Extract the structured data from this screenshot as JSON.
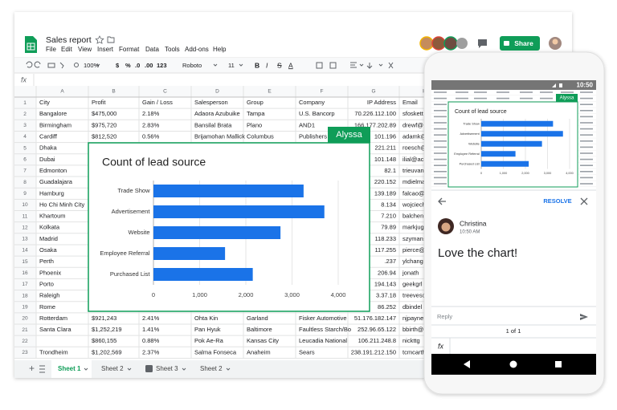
{
  "header": {
    "title": "Sales report",
    "menu": [
      "File",
      "Edit",
      "View",
      "Insert",
      "Format",
      "Data",
      "Tools",
      "Add-ons",
      "Help"
    ],
    "share": "Share"
  },
  "toolbar": {
    "zoom": "100%",
    "number_formats": [
      "$",
      "%",
      ".0",
      ".00",
      "123"
    ],
    "font": "Roboto",
    "size": "11",
    "styles": [
      "B",
      "I",
      "S",
      "A"
    ]
  },
  "formula_bar": {
    "label": "fx"
  },
  "sheet": {
    "columns": [
      "A",
      "B",
      "C",
      "D",
      "E",
      "F",
      "G",
      "H"
    ],
    "row_numbers": [
      1,
      2,
      3,
      4,
      5,
      6,
      7,
      8,
      9,
      10,
      11,
      12,
      13,
      14,
      15,
      16,
      17,
      18,
      19,
      20,
      21,
      22,
      23
    ],
    "rows": [
      [
        "City",
        "Profit",
        "Gain / Loss",
        "Salesperson",
        "Group",
        "Company",
        "IP Address",
        "Email"
      ],
      [
        "Bangalore",
        "$475,000",
        "2.18%",
        "Adaora Azubuike",
        "Tampa",
        "U.S. Bancorp",
        "70.226.112.100",
        "sfoskett"
      ],
      [
        "Birmingham",
        "$975,720",
        "2.83%",
        "Bansilal Brata",
        "Plano",
        "AND1",
        "166.177.202.89",
        "drewf@"
      ],
      [
        "Cardiff",
        "$812,520",
        "0.56%",
        "Brijamohan Mallick",
        "Columbus",
        "Publishers",
        "101.196",
        "adamk@"
      ],
      [
        "Dhaka",
        null,
        null,
        null,
        null,
        null,
        "221.211",
        "roesch@"
      ],
      [
        "Dubai",
        null,
        null,
        null,
        null,
        null,
        "101.148",
        "ilial@ac"
      ],
      [
        "Edmonton",
        null,
        null,
        null,
        null,
        null,
        "82.1",
        "trieuvan"
      ],
      [
        "Guadalajara",
        null,
        null,
        null,
        null,
        null,
        "220.152",
        "mdielma"
      ],
      [
        "Hamburg",
        null,
        null,
        null,
        null,
        null,
        "139.189",
        "falcao@"
      ],
      [
        "Ho Chi Minh City",
        null,
        null,
        null,
        null,
        null,
        "8.134",
        "wojciech"
      ],
      [
        "Khartoum",
        null,
        null,
        null,
        null,
        null,
        "7.210",
        "balchen"
      ],
      [
        "Kolkata",
        null,
        null,
        null,
        null,
        null,
        "79.89",
        "markjug"
      ],
      [
        "Madrid",
        null,
        null,
        null,
        null,
        null,
        "118.233",
        "szymans"
      ],
      [
        "Osaka",
        null,
        null,
        null,
        null,
        null,
        "117.255",
        "pierce@"
      ],
      [
        "Perth",
        null,
        null,
        null,
        null,
        null,
        ".237",
        "ylchang"
      ],
      [
        "Phoenix",
        null,
        null,
        null,
        null,
        null,
        "206.94",
        "jonath"
      ],
      [
        "Porto",
        null,
        null,
        null,
        null,
        null,
        "194.143",
        "geekgrl"
      ],
      [
        "Raleigh",
        null,
        null,
        null,
        null,
        null,
        "3.37.18",
        "treeves@"
      ],
      [
        "Rome",
        null,
        null,
        null,
        null,
        null,
        "86.252",
        "dbindel"
      ],
      [
        "Rotterdam",
        "$921,243",
        "2.41%",
        "Ohta Kin",
        "Garland",
        "Fisker Automotive",
        "51.176.182.147",
        "njpayne"
      ],
      [
        "Santa Clara",
        "$1,252,219",
        "1.41%",
        "Pan Hyuk",
        "Baltimore",
        "Faultless Starch/Bo",
        "252.96.65.122",
        "bbirth@"
      ],
      [
        null,
        "$860,155",
        "0.88%",
        "Pok Ae-Ra",
        "Kansas City",
        "Leucadia National",
        "106.211.248.8",
        "nickttg"
      ],
      [
        "Trondheim",
        "$1,202,569",
        "2.37%",
        "Salma Fonseca",
        "Anaheim",
        "Sears",
        "238.191.212.150",
        "tcmcarth"
      ]
    ]
  },
  "chart_data": {
    "type": "bar",
    "orientation": "horizontal",
    "title": "Count of lead source",
    "categories": [
      "Trade Show",
      "Advertisement",
      "Website",
      "Employee Referral",
      "Purchased List"
    ],
    "values": [
      3250,
      3700,
      2750,
      1550,
      2150
    ],
    "color": "#1a73e8",
    "xlim": [
      0,
      4000
    ],
    "xticks": [
      0,
      {
        "value": 1000,
        "label": "1,000"
      },
      {
        "value": 2000,
        "label": "2,000"
      },
      {
        "value": 3000,
        "label": "3,000"
      },
      {
        "value": 4000,
        "label": "4,000"
      }
    ],
    "grid": true
  },
  "collaborator": "Alyssa",
  "tabs": [
    "Sheet 1",
    "Sheet 2",
    "Sheet 3",
    "Sheet 2"
  ],
  "phone": {
    "time": "10:50",
    "resolve": "RESOLVE",
    "comment": {
      "author": "Christina",
      "time": "10:50 AM",
      "text": "Love the chart!"
    },
    "reply": "Reply",
    "pager": "1 of 1",
    "fx": "fx"
  }
}
